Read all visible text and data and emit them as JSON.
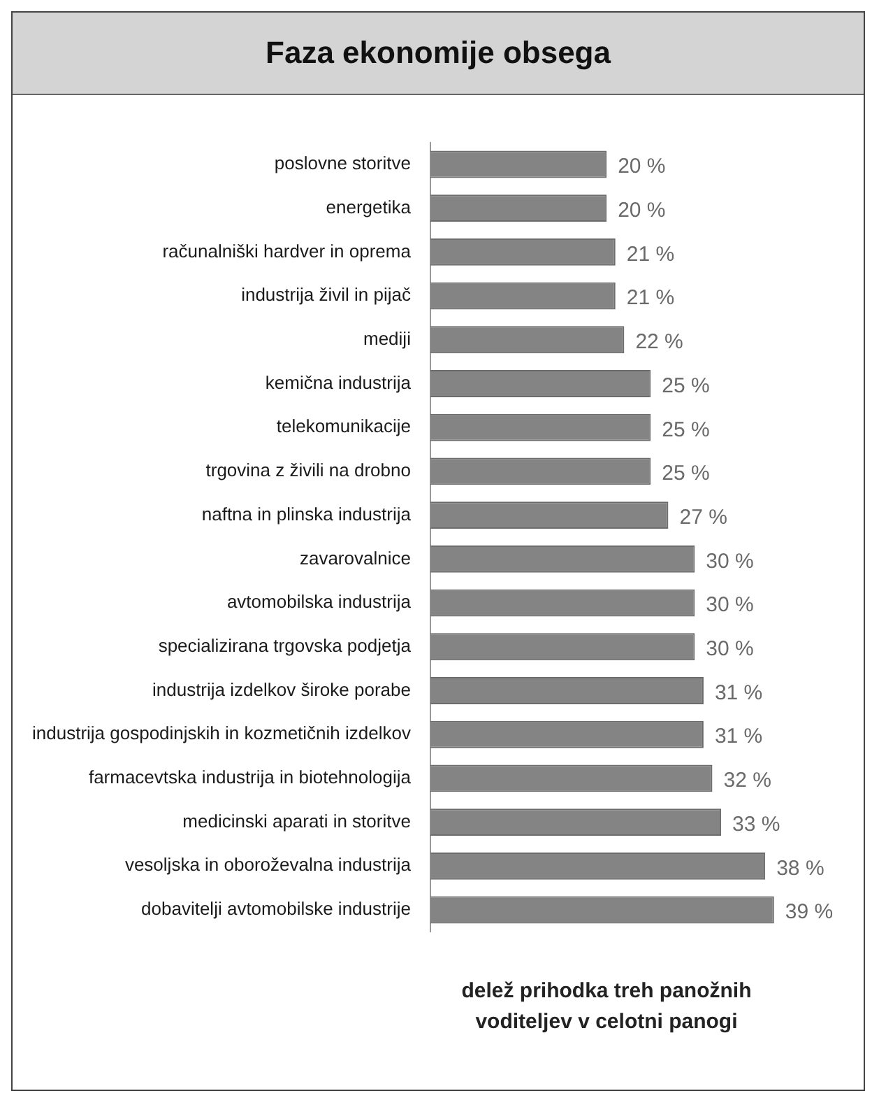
{
  "chart_data": {
    "type": "bar",
    "orientation": "horizontal",
    "title": "Faza ekonomije obsega",
    "xlabel": "delež prihodka treh panožnih voditeljev v celotni panogi",
    "categories": [
      "poslovne storitve",
      "energetika",
      "računalniški hardver in oprema",
      "industrija živil in pijač",
      "mediji",
      "kemična industrija",
      "telekomunikacije",
      "trgovina z živili na drobno",
      "naftna in plinska industrija",
      "zavarovalnice",
      "avtomobilska industrija",
      "specializirana trgovska podjetja",
      "industrija izdelkov široke porabe",
      "industrija gospodinjskih in kozmetičnih izdelkov",
      "farmacevtska industrija in biotehnologija",
      "medicinski aparati in storitve",
      "vesoljska in oboroževalna industrija",
      "dobavitelji avtomobilske industrije"
    ],
    "values": [
      20,
      20,
      21,
      21,
      22,
      25,
      25,
      25,
      27,
      30,
      30,
      30,
      31,
      31,
      32,
      33,
      38,
      39
    ],
    "value_labels": [
      "20 %",
      "20 %",
      "21 %",
      "21 %",
      "22 %",
      "25 %",
      "25 %",
      "25 %",
      "27 %",
      "30 %",
      "30 %",
      "30 %",
      "31 %",
      "31 %",
      "32 %",
      "33 %",
      "38 %",
      "39 %"
    ],
    "color": "#848484",
    "grid": false,
    "legend": false
  }
}
